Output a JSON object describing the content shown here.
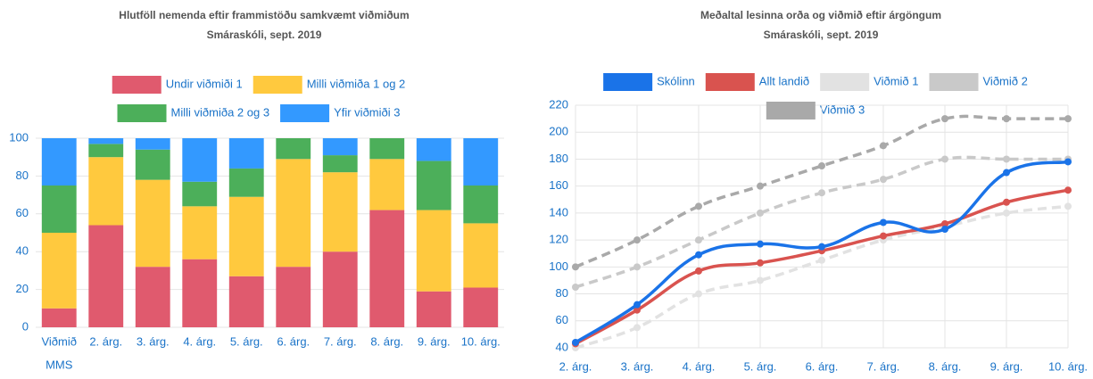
{
  "chart_data": [
    {
      "type": "stacked_bar",
      "title": "Hlutföll nemenda eftir frammistöðu samkvæmt viðmiðum",
      "subtitle": "Smáraskóli, sept. 2019",
      "categories": [
        [
          "Viðmið",
          "MMS"
        ],
        "2. árg.",
        "3. árg.",
        "4. árg.",
        "5. árg.",
        "6. árg.",
        "7. árg.",
        "8. árg.",
        "9. árg.",
        "10. árg."
      ],
      "series": [
        {
          "name": "Undir viðmiði 1",
          "color": "#e05a6e",
          "values": [
            10,
            54,
            32,
            36,
            27,
            32,
            40,
            62,
            19,
            21
          ]
        },
        {
          "name": "Milli viðmiða 1 og 2",
          "color": "#ffc93e",
          "values": [
            40,
            36,
            46,
            28,
            42,
            57,
            42,
            27,
            43,
            34
          ]
        },
        {
          "name": "Milli viðmiða 2 og 3",
          "color": "#4caf5a",
          "values": [
            25,
            7,
            16,
            13,
            15,
            11,
            9,
            11,
            26,
            20
          ]
        },
        {
          "name": "Yfir viðmiði 3",
          "color": "#3399ff",
          "values": [
            25,
            3,
            6,
            23,
            16,
            0,
            9,
            0,
            12,
            25
          ]
        }
      ],
      "ylim": [
        0,
        100
      ],
      "yticks": [
        0,
        20,
        40,
        60,
        80,
        100
      ],
      "grid": true
    },
    {
      "type": "line",
      "title": "Meðaltal lesinna orða og viðmið eftir árgöngum",
      "subtitle": "Smáraskóli, sept. 2019",
      "categories": [
        "2. árg.",
        "3. árg.",
        "4. árg.",
        "5. árg.",
        "6. árg.",
        "7. árg.",
        "8. árg.",
        "9. árg.",
        "10. árg."
      ],
      "series": [
        {
          "name": "Skólinn",
          "color": "#1a73e8",
          "values": [
            44,
            72,
            109,
            117,
            115,
            133,
            128,
            170,
            178
          ]
        },
        {
          "name": "Allt landið",
          "color": "#d9534f",
          "values": [
            43,
            68,
            97,
            103,
            112,
            123,
            132,
            148,
            157
          ]
        },
        {
          "name": "Viðmið 1",
          "color": "#e2e2e2",
          "dashed": true,
          "values": [
            40,
            55,
            80,
            90,
            105,
            120,
            130,
            140,
            145
          ]
        },
        {
          "name": "Viðmið 2",
          "color": "#c9c9c9",
          "dashed": true,
          "values": [
            85,
            100,
            120,
            140,
            155,
            165,
            180,
            180,
            180
          ]
        },
        {
          "name": "Viðmið 3",
          "color": "#a9a9a9",
          "dashed": true,
          "values": [
            100,
            120,
            145,
            160,
            175,
            190,
            210,
            210,
            210
          ]
        }
      ],
      "ylim": [
        40,
        220
      ],
      "yticks": [
        40,
        60,
        80,
        100,
        120,
        140,
        160,
        180,
        200,
        220
      ],
      "grid": true
    }
  ]
}
